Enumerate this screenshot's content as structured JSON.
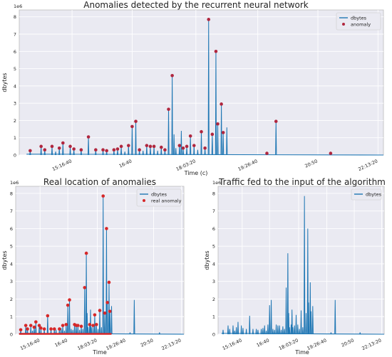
{
  "chart_data": [
    {
      "type": "line",
      "title": "Anomalies detected by the recurrent neural network",
      "xlabel": "Time (c)",
      "ylabel": "dbytes",
      "scale_label": "1e6",
      "ylim": [
        0,
        8.4
      ],
      "yticks": [
        0,
        1,
        2,
        3,
        4,
        5,
        6,
        7,
        8
      ],
      "xlim": [
        0,
        100
      ],
      "xticks": [
        {
          "x": 14.5,
          "label": "15:16:40"
        },
        {
          "x": 31,
          "label": "16:40"
        },
        {
          "x": 48.5,
          "label": "18:03:20"
        },
        {
          "x": 65.5,
          "label": "19:26:40"
        },
        {
          "x": 82,
          "label": "20:50"
        },
        {
          "x": 98.5,
          "label": "22:13:20"
        }
      ],
      "grid": true,
      "legend": {
        "position": "top-right",
        "entries": [
          "dbytes",
          "anomaly"
        ]
      },
      "series": [
        {
          "name": "dbytes",
          "kind": "line",
          "color": "#1f77b4",
          "spikes": [
            [
              3,
              0.25
            ],
            [
              6,
              0.5
            ],
            [
              7,
              0.3
            ],
            [
              9,
              0.5
            ],
            [
              10,
              0.2
            ],
            [
              11,
              0.4
            ],
            [
              12,
              0.7
            ],
            [
              14,
              0.5
            ],
            [
              15,
              0.35
            ],
            [
              17,
              0.3
            ],
            [
              19,
              1.05
            ],
            [
              21,
              0.3
            ],
            [
              23,
              0.3
            ],
            [
              24,
              0.25
            ],
            [
              26,
              0.3
            ],
            [
              27,
              0.35
            ],
            [
              28,
              0.5
            ],
            [
              29,
              0.2
            ],
            [
              30,
              0.55
            ],
            [
              31,
              1.65
            ],
            [
              32,
              1.95
            ],
            [
              33,
              0.3
            ],
            [
              34,
              0.25
            ],
            [
              35,
              0.55
            ],
            [
              36,
              0.5
            ],
            [
              37,
              0.5
            ],
            [
              38,
              0.25
            ],
            [
              39,
              0.45
            ],
            [
              40,
              0.3
            ],
            [
              41,
              2.65
            ],
            [
              42,
              4.6
            ],
            [
              42.5,
              1.2
            ],
            [
              43,
              0.4
            ],
            [
              44,
              0.55
            ],
            [
              44.5,
              1.4
            ],
            [
              45,
              0.4
            ],
            [
              46,
              0.5
            ],
            [
              47,
              1.1
            ],
            [
              48,
              0.55
            ],
            [
              49,
              0.3
            ],
            [
              50,
              1.35
            ],
            [
              51,
              0.4
            ],
            [
              52,
              7.85
            ],
            [
              53,
              1.2
            ],
            [
              54,
              6.0
            ],
            [
              54.5,
              1.8
            ],
            [
              55.5,
              2.95
            ],
            [
              56,
              1.3
            ],
            [
              57,
              1.6
            ],
            [
              68,
              0.1
            ],
            [
              70.5,
              1.95
            ],
            [
              85.5,
              0.1
            ]
          ],
          "baseline": [
            [
              2,
              0.05
            ],
            [
              100,
              0.0
            ]
          ]
        },
        {
          "name": "anomaly",
          "kind": "scatter",
          "color": "#b0263e",
          "points": [
            [
              3,
              0.25
            ],
            [
              6,
              0.5
            ],
            [
              7,
              0.3
            ],
            [
              9,
              0.5
            ],
            [
              11,
              0.4
            ],
            [
              12,
              0.7
            ],
            [
              14,
              0.5
            ],
            [
              15,
              0.35
            ],
            [
              17,
              0.3
            ],
            [
              19,
              1.05
            ],
            [
              21,
              0.3
            ],
            [
              23,
              0.3
            ],
            [
              24,
              0.25
            ],
            [
              26,
              0.3
            ],
            [
              27,
              0.35
            ],
            [
              28,
              0.5
            ],
            [
              30,
              0.55
            ],
            [
              31,
              1.65
            ],
            [
              32,
              1.95
            ],
            [
              33,
              0.3
            ],
            [
              35,
              0.55
            ],
            [
              36,
              0.5
            ],
            [
              37,
              0.5
            ],
            [
              39,
              0.45
            ],
            [
              40,
              0.3
            ],
            [
              41,
              2.65
            ],
            [
              42,
              4.6
            ],
            [
              44,
              0.55
            ],
            [
              45,
              0.4
            ],
            [
              46,
              0.5
            ],
            [
              47,
              1.1
            ],
            [
              48,
              0.55
            ],
            [
              50,
              1.35
            ],
            [
              51,
              0.4
            ],
            [
              52,
              7.85
            ],
            [
              53,
              1.2
            ],
            [
              54,
              6.0
            ],
            [
              54.5,
              1.8
            ],
            [
              55.5,
              2.95
            ],
            [
              56,
              1.3
            ],
            [
              68,
              0.1
            ],
            [
              70.5,
              1.95
            ],
            [
              85.5,
              0.1
            ]
          ]
        }
      ]
    },
    {
      "type": "line",
      "title": "Real location of anomalies",
      "xlabel": "Time",
      "ylabel": "dbytes",
      "scale_label": "1e6",
      "ylim": [
        0,
        8.4
      ],
      "yticks": [
        0,
        1,
        2,
        3,
        4,
        5,
        6,
        7,
        8
      ],
      "xlim": [
        0,
        100
      ],
      "xticks": [
        {
          "x": 14.5,
          "label": "15:16:40"
        },
        {
          "x": 31,
          "label": "16:40"
        },
        {
          "x": 48.5,
          "label": "18:03:20"
        },
        {
          "x": 65.5,
          "label": "19:26:40"
        },
        {
          "x": 82,
          "label": "20:50"
        },
        {
          "x": 98.5,
          "label": "22:13:20"
        }
      ],
      "grid": true,
      "legend": {
        "position": "top-right",
        "entries": [
          "dbytes",
          "real anomaly"
        ]
      },
      "series": [
        {
          "name": "dbytes",
          "kind": "line",
          "color": "#1f77b4",
          "spikes": [
            [
              3,
              0.25
            ],
            [
              6,
              0.5
            ],
            [
              7,
              0.3
            ],
            [
              9,
              0.5
            ],
            [
              10,
              0.2
            ],
            [
              11,
              0.4
            ],
            [
              12,
              0.7
            ],
            [
              14,
              0.5
            ],
            [
              15,
              0.35
            ],
            [
              17,
              0.3
            ],
            [
              19,
              1.05
            ],
            [
              21,
              0.3
            ],
            [
              23,
              0.3
            ],
            [
              24,
              0.25
            ],
            [
              26,
              0.3
            ],
            [
              27,
              0.35
            ],
            [
              28,
              0.5
            ],
            [
              29,
              0.2
            ],
            [
              30,
              0.55
            ],
            [
              31,
              1.65
            ],
            [
              32,
              1.95
            ],
            [
              33,
              0.3
            ],
            [
              34,
              0.25
            ],
            [
              35,
              0.55
            ],
            [
              36,
              0.5
            ],
            [
              37,
              0.5
            ],
            [
              38,
              0.25
            ],
            [
              39,
              0.45
            ],
            [
              40,
              0.3
            ],
            [
              41,
              2.65
            ],
            [
              42,
              4.6
            ],
            [
              42.5,
              1.2
            ],
            [
              43,
              0.4
            ],
            [
              44,
              0.55
            ],
            [
              44.5,
              1.4
            ],
            [
              45,
              0.4
            ],
            [
              46,
              0.5
            ],
            [
              47,
              1.1
            ],
            [
              48,
              0.55
            ],
            [
              49,
              0.3
            ],
            [
              50,
              1.35
            ],
            [
              51,
              0.4
            ],
            [
              52,
              7.85
            ],
            [
              53,
              1.2
            ],
            [
              54,
              6.0
            ],
            [
              54.5,
              1.8
            ],
            [
              55.5,
              2.95
            ],
            [
              56,
              1.3
            ],
            [
              57,
              1.6
            ],
            [
              68,
              0.1
            ],
            [
              70.5,
              1.95
            ],
            [
              85.5,
              0.1
            ]
          ],
          "baseline": [
            [
              2,
              0.05
            ],
            [
              100,
              0.0
            ]
          ]
        },
        {
          "name": "real anomaly",
          "kind": "scatter",
          "color": "#d62728",
          "points": [
            [
              3,
              0.25
            ],
            [
              6,
              0.5
            ],
            [
              7,
              0.3
            ],
            [
              9,
              0.5
            ],
            [
              11,
              0.4
            ],
            [
              12,
              0.7
            ],
            [
              14,
              0.5
            ],
            [
              15,
              0.35
            ],
            [
              17,
              0.3
            ],
            [
              19,
              1.05
            ],
            [
              21,
              0.3
            ],
            [
              23,
              0.3
            ],
            [
              26,
              0.3
            ],
            [
              28,
              0.5
            ],
            [
              30,
              0.55
            ],
            [
              31,
              1.65
            ],
            [
              32,
              1.95
            ],
            [
              35,
              0.55
            ],
            [
              36,
              0.5
            ],
            [
              37,
              0.5
            ],
            [
              39,
              0.45
            ],
            [
              41,
              2.65
            ],
            [
              42,
              4.6
            ],
            [
              44,
              0.55
            ],
            [
              46,
              0.5
            ],
            [
              47,
              1.1
            ],
            [
              48,
              0.55
            ],
            [
              50,
              1.35
            ],
            [
              52,
              7.85
            ],
            [
              53,
              1.2
            ],
            [
              54,
              6.0
            ],
            [
              54.5,
              1.8
            ],
            [
              55.5,
              2.95
            ],
            [
              56,
              1.3
            ]
          ],
          "band": [
            2,
            57
          ]
        }
      ]
    },
    {
      "type": "line",
      "title": "Traffic fed to the input of the algorithm",
      "xlabel": "Time",
      "ylabel": "dbytes",
      "scale_label": "1e6",
      "ylim": [
        0,
        8.4
      ],
      "yticks": [
        0,
        1,
        2,
        3,
        4,
        5,
        6,
        7,
        8
      ],
      "xlim": [
        0,
        100
      ],
      "xticks": [
        {
          "x": 14.5,
          "label": "15:16:40"
        },
        {
          "x": 31,
          "label": "16:40"
        },
        {
          "x": 48.5,
          "label": "18:03:20"
        },
        {
          "x": 65.5,
          "label": "19:26:40"
        },
        {
          "x": 82,
          "label": "20:50"
        },
        {
          "x": 98.5,
          "label": "22:13:20"
        }
      ],
      "grid": true,
      "legend": {
        "position": "top-right",
        "entries": [
          "dbytes"
        ]
      },
      "series": [
        {
          "name": "dbytes",
          "kind": "line",
          "color": "#1f77b4",
          "spikes": [
            [
              3,
              0.25
            ],
            [
              6,
              0.5
            ],
            [
              7,
              0.3
            ],
            [
              9,
              0.5
            ],
            [
              10,
              0.2
            ],
            [
              11,
              0.4
            ],
            [
              12,
              0.7
            ],
            [
              14,
              0.5
            ],
            [
              15,
              0.35
            ],
            [
              17,
              0.3
            ],
            [
              19,
              1.05
            ],
            [
              21,
              0.3
            ],
            [
              23,
              0.3
            ],
            [
              24,
              0.25
            ],
            [
              26,
              0.3
            ],
            [
              27,
              0.35
            ],
            [
              28,
              0.5
            ],
            [
              29,
              0.2
            ],
            [
              30,
              0.55
            ],
            [
              31,
              1.65
            ],
            [
              32,
              1.95
            ],
            [
              33,
              0.3
            ],
            [
              34,
              0.25
            ],
            [
              35,
              0.55
            ],
            [
              36,
              0.5
            ],
            [
              37,
              0.5
            ],
            [
              38,
              0.25
            ],
            [
              39,
              0.45
            ],
            [
              40,
              0.3
            ],
            [
              41,
              2.65
            ],
            [
              42,
              4.6
            ],
            [
              42.5,
              1.2
            ],
            [
              43,
              0.4
            ],
            [
              44,
              0.55
            ],
            [
              44.5,
              1.4
            ],
            [
              45,
              0.4
            ],
            [
              46,
              0.5
            ],
            [
              47,
              1.1
            ],
            [
              48,
              0.55
            ],
            [
              49,
              0.3
            ],
            [
              50,
              1.35
            ],
            [
              51,
              0.4
            ],
            [
              52,
              7.85
            ],
            [
              53,
              1.2
            ],
            [
              54,
              6.0
            ],
            [
              54.5,
              1.8
            ],
            [
              55.5,
              2.95
            ],
            [
              56,
              1.3
            ],
            [
              57,
              1.6
            ],
            [
              68,
              0.1
            ],
            [
              70.5,
              1.95
            ],
            [
              85.5,
              0.1
            ]
          ],
          "baseline": [
            [
              2,
              0.05
            ],
            [
              100,
              0.0
            ]
          ]
        }
      ]
    }
  ]
}
